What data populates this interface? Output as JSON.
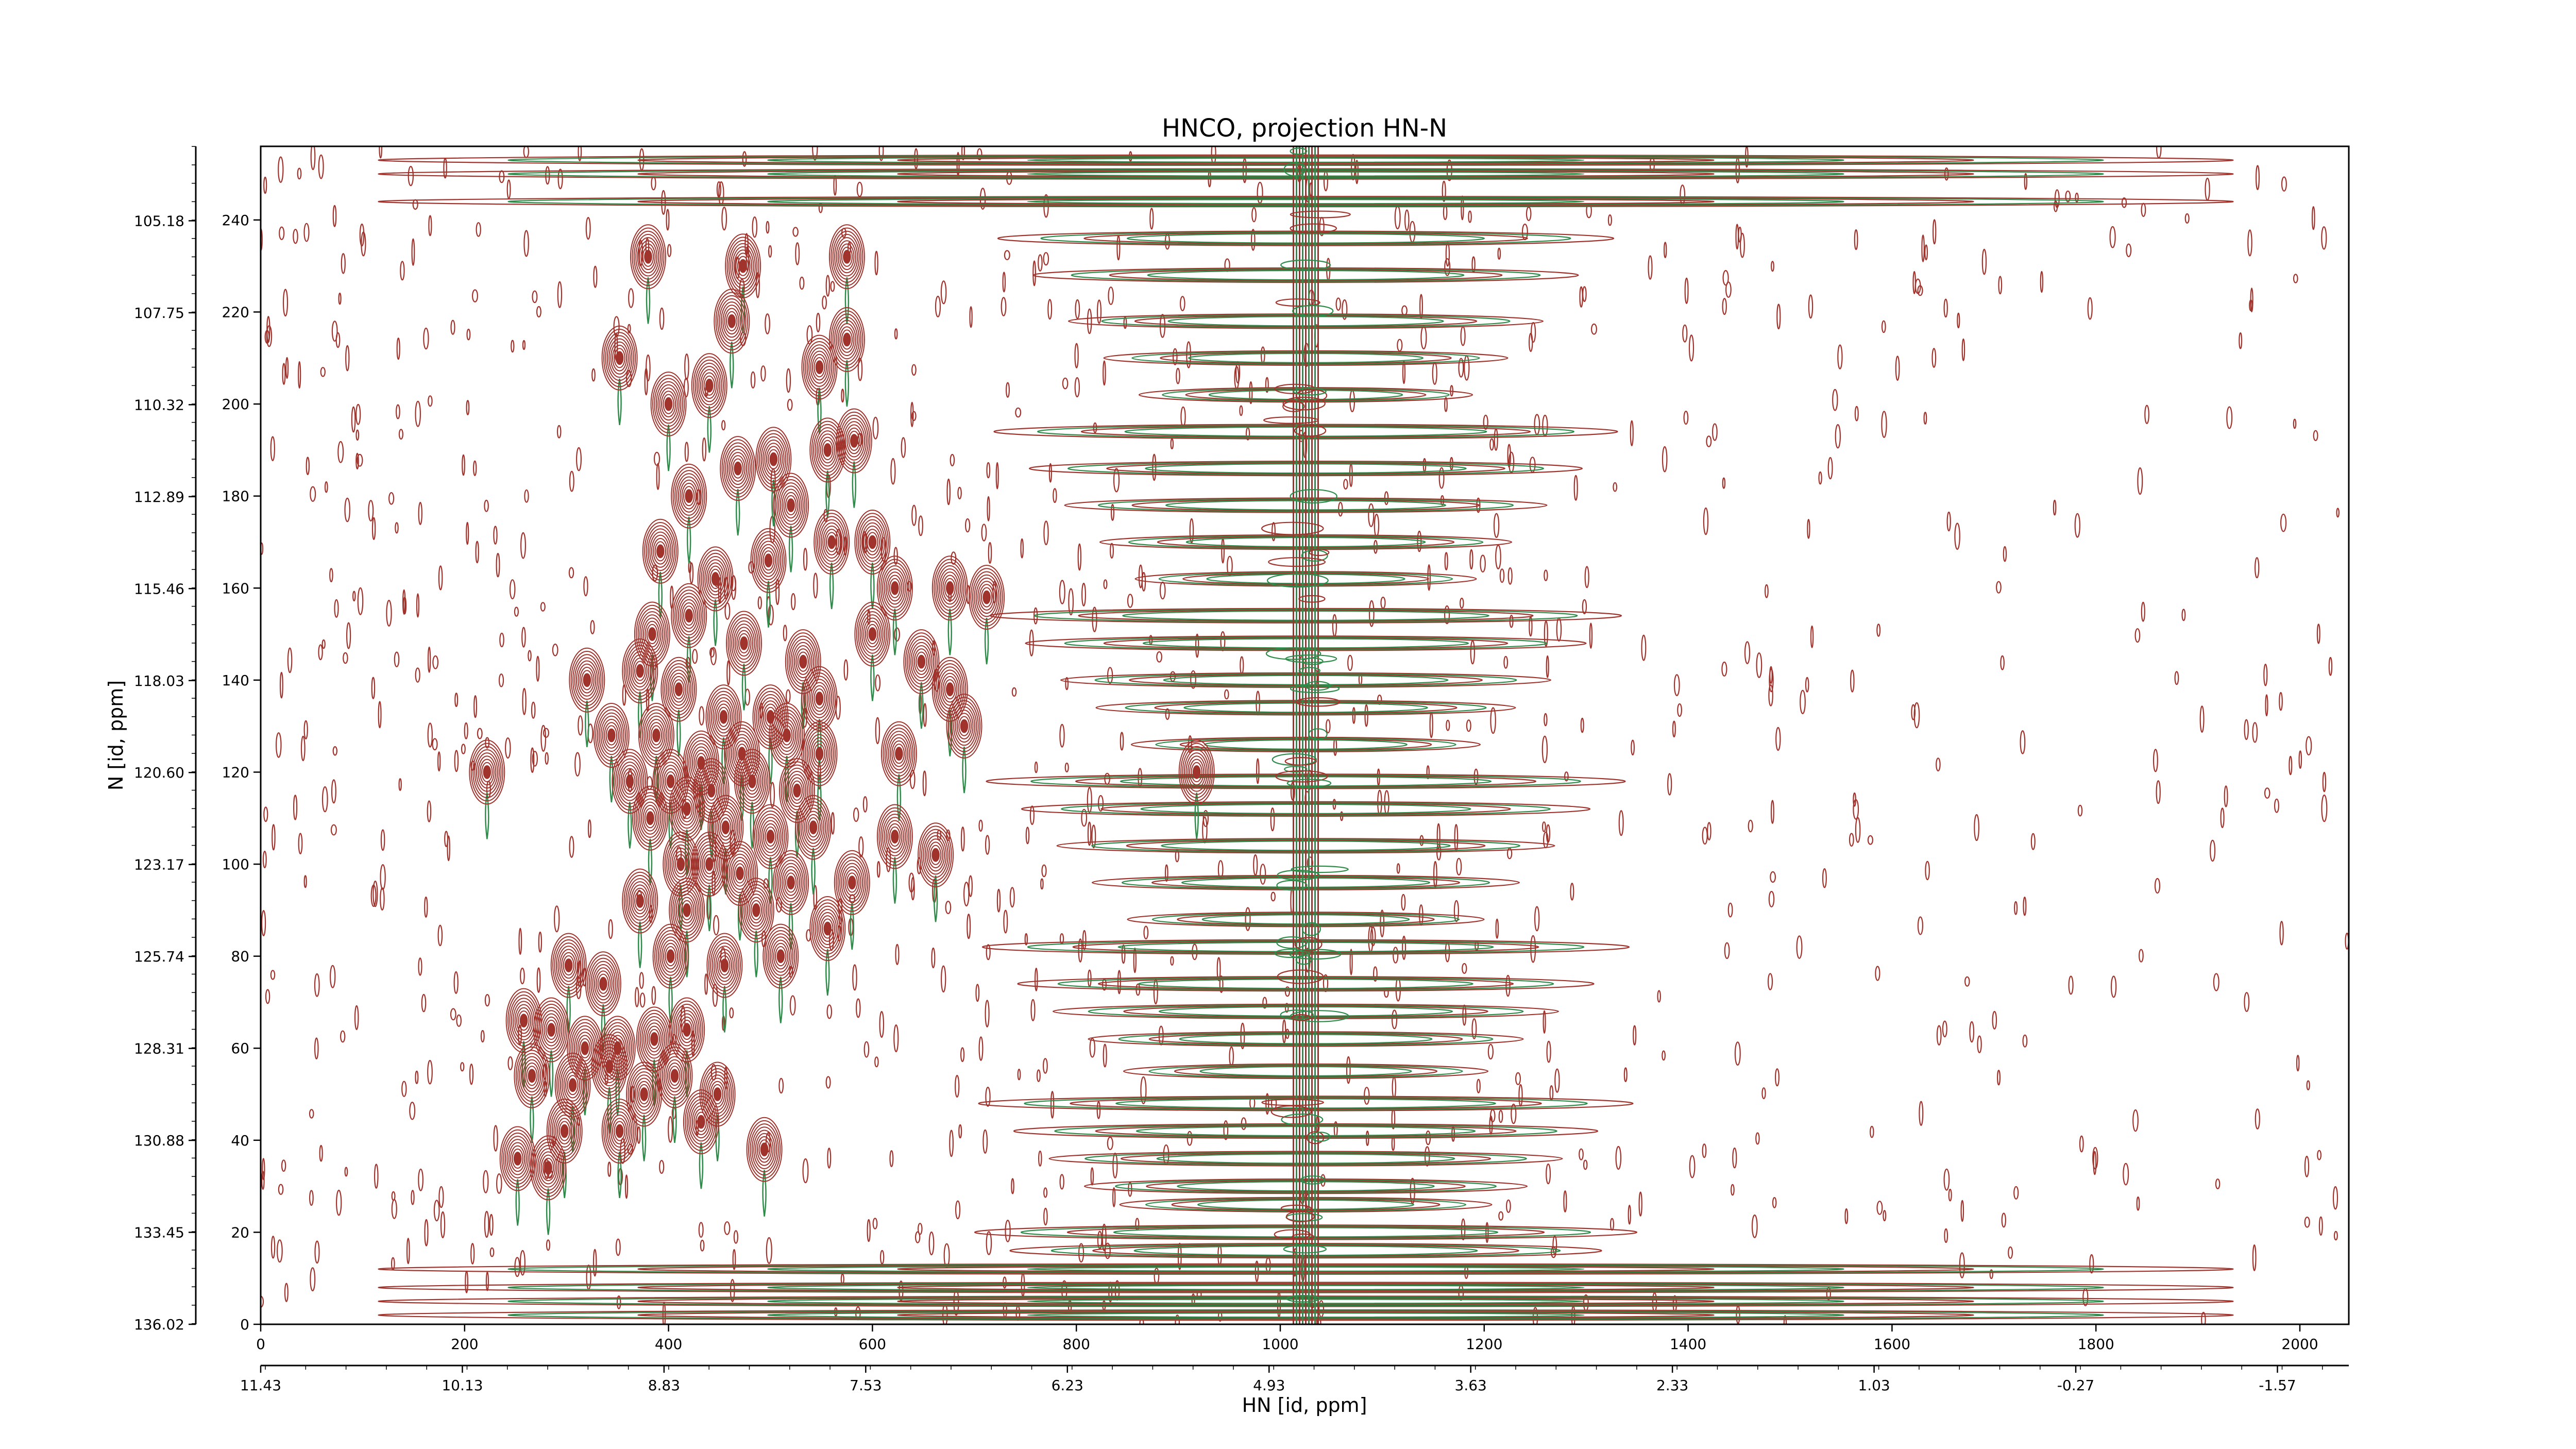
{
  "chart_data": {
    "type": "heatmap",
    "subtype": "nmr-2d-contour",
    "title": "HNCO, projection HN-N",
    "xlabel": "HN [id, ppm]",
    "ylabel": "N [id, ppm]",
    "x_points": {
      "range": [
        0,
        2048
      ],
      "ticks": [
        "0",
        "200",
        "400",
        "600",
        "800",
        "1000",
        "1200",
        "1400",
        "1600",
        "1800",
        "2000"
      ]
    },
    "x_ppm": {
      "range": [
        11.43,
        -2.03
      ],
      "ticks": [
        "11.43",
        "10.13",
        "8.83",
        "7.53",
        "6.23",
        "4.93",
        "3.63",
        "2.33",
        "1.03",
        "-0.27",
        "-1.57"
      ]
    },
    "y_points": {
      "range": [
        0,
        256
      ],
      "ticks": [
        "0",
        "20",
        "40",
        "60",
        "80",
        "100",
        "120",
        "140",
        "160",
        "180",
        "200",
        "220",
        "240"
      ]
    },
    "y_ppm": {
      "range": [
        136.02,
        103.1
      ],
      "ticks": [
        "136.02",
        "133.45",
        "130.88",
        "128.31",
        "125.74",
        "123.17",
        "120.60",
        "118.03",
        "115.46",
        "112.89",
        "110.32",
        "107.75",
        "105.18"
      ]
    },
    "grid": false,
    "legend": "none",
    "colors": {
      "positive_contours": "#a0332c",
      "negative_contours": "#2e8b4a"
    },
    "water_ridge_x_point": 1025,
    "peaks": [
      [
        380,
        232
      ],
      [
        473,
        230
      ],
      [
        575,
        232
      ],
      [
        352,
        210
      ],
      [
        462,
        218
      ],
      [
        575,
        214
      ],
      [
        400,
        200
      ],
      [
        440,
        204
      ],
      [
        503,
        188
      ],
      [
        548,
        208
      ],
      [
        582,
        192
      ],
      [
        420,
        180
      ],
      [
        468,
        186
      ],
      [
        520,
        178
      ],
      [
        556,
        190
      ],
      [
        600,
        170
      ],
      [
        392,
        168
      ],
      [
        446,
        162
      ],
      [
        498,
        166
      ],
      [
        560,
        170
      ],
      [
        622,
        160
      ],
      [
        676,
        160
      ],
      [
        384,
        150
      ],
      [
        420,
        154
      ],
      [
        474,
        148
      ],
      [
        532,
        144
      ],
      [
        600,
        150
      ],
      [
        648,
        144
      ],
      [
        712,
        158
      ],
      [
        320,
        140
      ],
      [
        372,
        142
      ],
      [
        410,
        138
      ],
      [
        454,
        132
      ],
      [
        500,
        132
      ],
      [
        548,
        136
      ],
      [
        676,
        138
      ],
      [
        690,
        130
      ],
      [
        344,
        128
      ],
      [
        388,
        128
      ],
      [
        432,
        122
      ],
      [
        472,
        124
      ],
      [
        516,
        128
      ],
      [
        548,
        124
      ],
      [
        626,
        124
      ],
      [
        222,
        120
      ],
      [
        362,
        118
      ],
      [
        402,
        118
      ],
      [
        442,
        116
      ],
      [
        482,
        118
      ],
      [
        526,
        116
      ],
      [
        918,
        120
      ],
      [
        382,
        110
      ],
      [
        418,
        112
      ],
      [
        456,
        108
      ],
      [
        500,
        106
      ],
      [
        542,
        108
      ],
      [
        622,
        106
      ],
      [
        662,
        102
      ],
      [
        412,
        100
      ],
      [
        440,
        100
      ],
      [
        470,
        98
      ],
      [
        520,
        96
      ],
      [
        580,
        96
      ],
      [
        372,
        92
      ],
      [
        418,
        90
      ],
      [
        486,
        90
      ],
      [
        556,
        86
      ],
      [
        402,
        80
      ],
      [
        455,
        78
      ],
      [
        510,
        80
      ],
      [
        302,
        78
      ],
      [
        336,
        74
      ],
      [
        258,
        66
      ],
      [
        285,
        64
      ],
      [
        318,
        60
      ],
      [
        350,
        60
      ],
      [
        386,
        62
      ],
      [
        418,
        64
      ],
      [
        266,
        54
      ],
      [
        306,
        52
      ],
      [
        342,
        56
      ],
      [
        376,
        50
      ],
      [
        406,
        54
      ],
      [
        448,
        50
      ],
      [
        298,
        42
      ],
      [
        352,
        42
      ],
      [
        432,
        44
      ],
      [
        494,
        38
      ],
      [
        252,
        36
      ],
      [
        282,
        34
      ]
    ]
  }
}
